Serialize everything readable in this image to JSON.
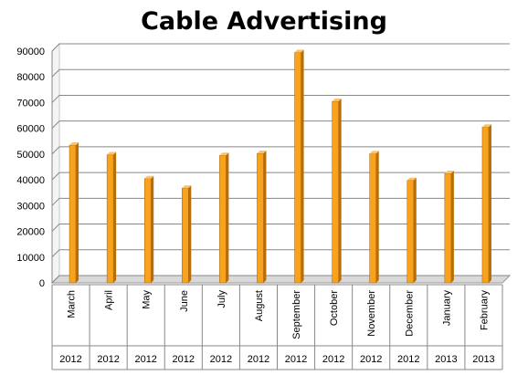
{
  "chart_data": {
    "type": "bar",
    "title": "Cable Advertising",
    "categories": [
      "March",
      "April",
      "May",
      "June",
      "July",
      "August",
      "September",
      "October",
      "November",
      "December",
      "January",
      "February"
    ],
    "years": [
      "2012",
      "2012",
      "2012",
      "2012",
      "2012",
      "2012",
      "2012",
      "2012",
      "2012",
      "2012",
      "2013",
      "2013"
    ],
    "values": [
      53500,
      49800,
      40500,
      36800,
      49500,
      50300,
      89500,
      70500,
      50200,
      39800,
      42500,
      60500
    ],
    "ylim": [
      0,
      90000
    ],
    "yticks": [
      0,
      10000,
      20000,
      30000,
      40000,
      50000,
      60000,
      70000,
      80000,
      90000
    ],
    "grid": true,
    "legend": "none",
    "colors": {
      "bar_front": "#F9A21D",
      "bar_side": "#B86E08",
      "bar_top": "#FCC46A",
      "grid": "#888888",
      "wall": "#C8C8C8"
    }
  }
}
